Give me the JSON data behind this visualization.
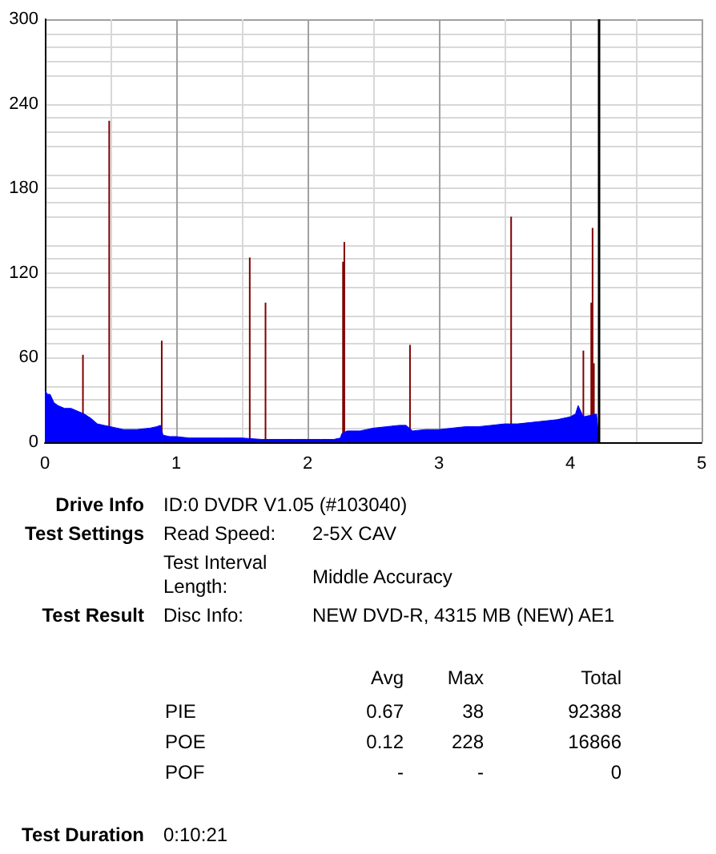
{
  "chart_data": {
    "type": "area",
    "xlim": [
      0,
      5
    ],
    "xticks": [
      0,
      1,
      2,
      3,
      4,
      5
    ],
    "ylim": [
      0,
      300
    ],
    "yticks": [
      0,
      60,
      120,
      180,
      240,
      300
    ],
    "grid": true,
    "marker": "none",
    "series": [
      {
        "color": "#0000ff",
        "x": [
          0,
          0.02,
          0.04,
          0.07,
          0.1,
          0.15,
          0.2,
          0.25,
          0.3,
          0.35,
          0.4,
          0.45,
          0.5,
          0.6,
          0.7,
          0.8,
          0.85,
          0.88,
          0.9,
          0.95,
          1.0,
          1.1,
          1.2,
          1.35,
          1.5,
          1.65,
          1.8,
          1.9,
          2.0,
          2.1,
          2.2,
          2.25,
          2.26,
          2.3,
          2.4,
          2.5,
          2.6,
          2.7,
          2.75,
          2.8,
          2.9,
          3.0,
          3.1,
          3.2,
          3.3,
          3.4,
          3.5,
          3.6,
          3.7,
          3.8,
          3.9,
          4.0,
          4.04,
          4.06,
          4.1,
          4.15,
          4.2,
          4.22
        ],
        "values": [
          37,
          34,
          34,
          28,
          26,
          24,
          24,
          22,
          20,
          17,
          13,
          12,
          11,
          9,
          9,
          10,
          11,
          12,
          5,
          4,
          4,
          3,
          3,
          3,
          3,
          2,
          2,
          2,
          2,
          2,
          2,
          3,
          6,
          8,
          8,
          10,
          11,
          12,
          12,
          8,
          9,
          9,
          10,
          11,
          11,
          12,
          13,
          13,
          14,
          15,
          16,
          18,
          20,
          26,
          18,
          19,
          20,
          0
        ]
      },
      {
        "type": "bar",
        "color": "#800000",
        "x": [
          0.29,
          0.49,
          0.89,
          1.56,
          1.68,
          2.27,
          2.28,
          2.78,
          3.55,
          4.1,
          4.16,
          4.17,
          4.18
        ],
        "values": [
          62,
          228,
          72,
          131,
          99,
          128,
          142,
          69,
          160,
          65,
          99,
          152,
          56
        ]
      }
    ],
    "ref_lines": [
      {
        "axis": "x",
        "value": 4.22,
        "color": "#000000"
      }
    ],
    "annotations": [
      "Drive Info",
      "ID:0 DVDR V1.05 (#103040)",
      "Test Settings",
      "Read Speed:",
      "2-5X CAV",
      "Test Interval Length:",
      "Middle Accuracy",
      "Test Result",
      "Disc Info:",
      "NEW DVD-R, 4315 MB (NEW) AE1",
      "Avg",
      "Max",
      "Total",
      "PIE",
      "0.67",
      "38",
      "92388",
      "POE",
      "0.12",
      "228",
      "16866",
      "POF",
      "-",
      "-",
      "0",
      "Test Duration",
      "0:10:21"
    ]
  }
}
